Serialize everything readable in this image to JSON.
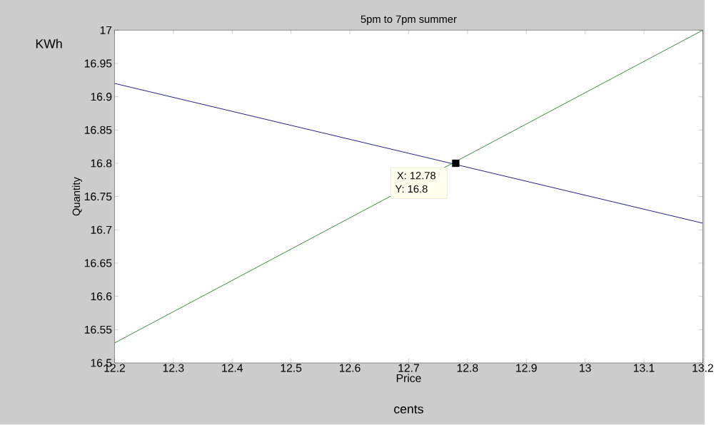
{
  "chart_data": {
    "type": "line",
    "title": "5pm to 7pm summer",
    "xlabel": "Price",
    "ylabel": "Quantity",
    "annotations": [
      "KWh",
      "cents",
      {
        "text": "X: 12.78",
        "x": 12.78,
        "y": 16.8
      },
      "Y: 16.8"
    ],
    "series": [
      {
        "color": "#1c1c80",
        "x": [
          12.2,
          13.2
        ],
        "values": [
          16.92,
          16.71
        ]
      },
      {
        "color": "#3a8a3a",
        "x": [
          12.2,
          13.2
        ],
        "values": [
          16.53,
          17.0
        ]
      },
      {
        "type": "scatter",
        "marker": "square",
        "color": "#000000",
        "x": [
          12.78
        ],
        "values": [
          16.8
        ]
      }
    ],
    "xlim": [
      12.2,
      13.2
    ],
    "ylim": [
      16.5,
      17
    ],
    "xticks": [
      12.2,
      12.3,
      12.4,
      12.5,
      12.6,
      12.7,
      12.8,
      12.9,
      13,
      13.1,
      13.2
    ],
    "yticks": [
      16.5,
      16.55,
      16.6,
      16.65,
      16.7,
      16.75,
      16.8,
      16.85,
      16.9,
      16.95,
      17
    ],
    "grid": false
  }
}
